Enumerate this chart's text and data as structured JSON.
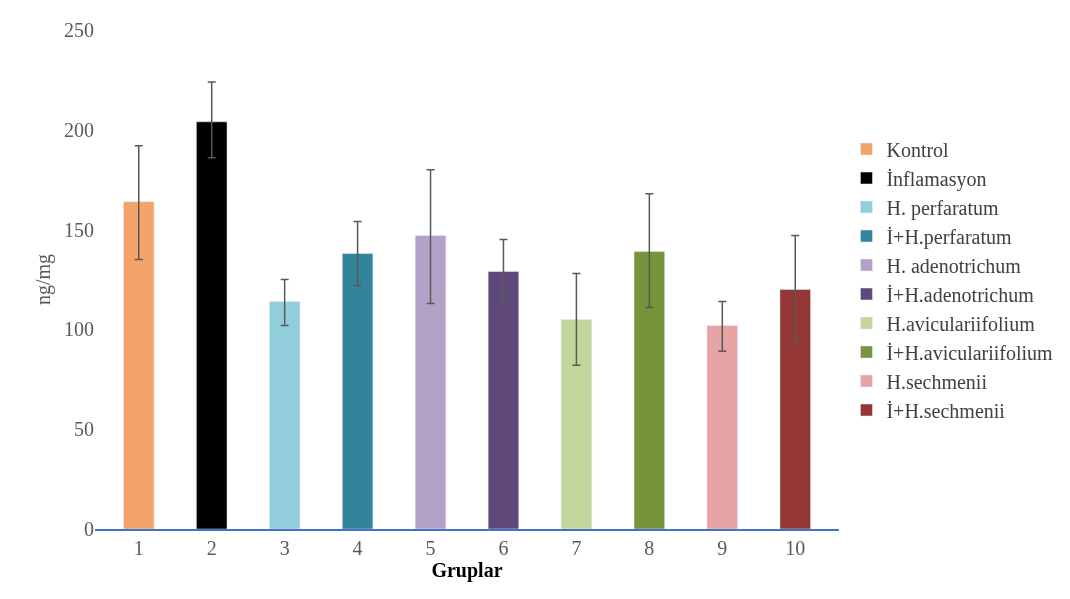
{
  "chart_data": {
    "type": "bar",
    "xlabel": "Gruplar",
    "ylabel": "ng/mg",
    "categories": [
      "1",
      "2",
      "3",
      "4",
      "5",
      "6",
      "7",
      "8",
      "9",
      "10"
    ],
    "series": [
      {
        "name": "Kontrol",
        "color": "#f4a36b",
        "values": [
          164,
          null,
          null,
          null,
          null,
          null,
          null,
          null,
          null,
          null
        ],
        "errors": [
          [
            135,
            192
          ],
          null,
          null,
          null,
          null,
          null,
          null,
          null,
          null,
          null
        ]
      },
      {
        "name": "İnflamasyon",
        "color": "#000000",
        "values": [
          null,
          204,
          null,
          null,
          null,
          null,
          null,
          null,
          null,
          null
        ],
        "errors": [
          null,
          [
            186,
            224
          ],
          null,
          null,
          null,
          null,
          null,
          null,
          null,
          null
        ]
      },
      {
        "name": "H. perfaratum",
        "color": "#92cddc",
        "values": [
          null,
          null,
          114,
          null,
          null,
          null,
          null,
          null,
          null,
          null
        ],
        "errors": [
          null,
          null,
          [
            102,
            125
          ],
          null,
          null,
          null,
          null,
          null,
          null,
          null
        ]
      },
      {
        "name": "İ+H.perfaratum",
        "color": "#31849b",
        "values": [
          null,
          null,
          null,
          138,
          null,
          null,
          null,
          null,
          null,
          null
        ],
        "errors": [
          null,
          null,
          null,
          [
            122,
            154
          ],
          null,
          null,
          null,
          null,
          null,
          null
        ]
      },
      {
        "name": "H. adenotrichum",
        "color": "#b3a2c7",
        "values": [
          null,
          null,
          null,
          null,
          147,
          null,
          null,
          null,
          null,
          null
        ],
        "errors": [
          null,
          null,
          null,
          null,
          [
            113,
            180
          ],
          null,
          null,
          null,
          null,
          null
        ]
      },
      {
        "name": "İ+H.adenotrichum",
        "color": "#5f497a",
        "values": [
          null,
          null,
          null,
          null,
          null,
          129,
          null,
          null,
          null,
          null
        ],
        "errors": [
          null,
          null,
          null,
          null,
          null,
          [
            113,
            145
          ],
          null,
          null,
          null,
          null
        ]
      },
      {
        "name": "H.aviculariifolium",
        "color": "#c3d69b",
        "values": [
          null,
          null,
          null,
          null,
          null,
          null,
          105,
          null,
          null,
          null
        ],
        "errors": [
          null,
          null,
          null,
          null,
          null,
          null,
          [
            82,
            128
          ],
          null,
          null,
          null
        ]
      },
      {
        "name": "İ+H.aviculariifolium",
        "color": "#77933c",
        "values": [
          null,
          null,
          null,
          null,
          null,
          null,
          null,
          139,
          null,
          null
        ],
        "errors": [
          null,
          null,
          null,
          null,
          null,
          null,
          null,
          [
            111,
            168
          ],
          null,
          null
        ]
      },
      {
        "name": "H.sechmenii",
        "color": "#e6a3a3",
        "values": [
          null,
          null,
          null,
          null,
          null,
          null,
          null,
          null,
          102,
          null
        ],
        "errors": [
          null,
          null,
          null,
          null,
          null,
          null,
          null,
          null,
          [
            89,
            114
          ],
          null
        ]
      },
      {
        "name": "İ+H.sechmenii",
        "color": "#953735",
        "values": [
          null,
          null,
          null,
          null,
          null,
          null,
          null,
          null,
          null,
          120
        ],
        "errors": [
          null,
          null,
          null,
          null,
          null,
          null,
          null,
          null,
          null,
          [
            94,
            147
          ]
        ]
      }
    ],
    "ylim": [
      0,
      250
    ],
    "yticks": [
      0,
      50,
      100,
      150,
      200,
      250
    ],
    "grid": false,
    "legend": "right"
  }
}
